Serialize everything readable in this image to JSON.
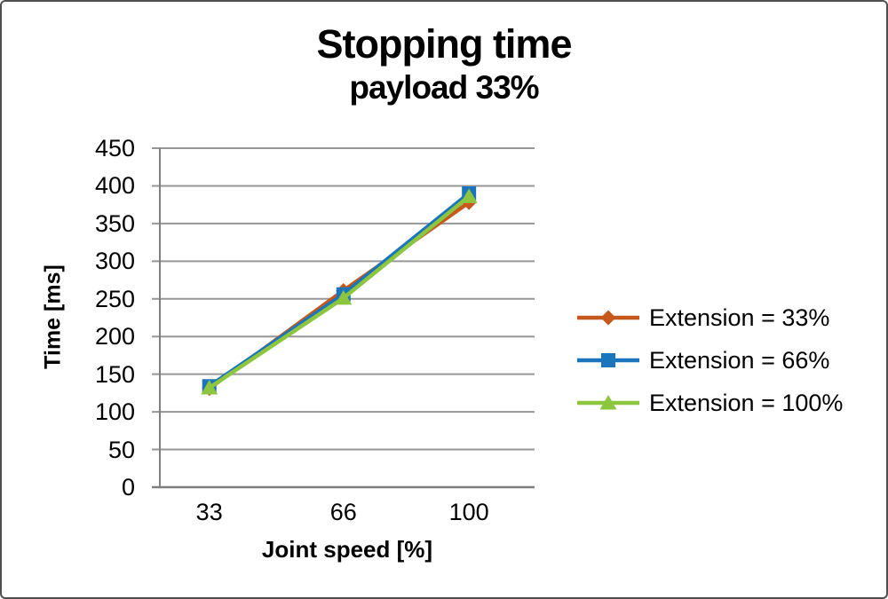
{
  "chart_data": {
    "type": "line",
    "title": "Stopping time",
    "subtitle": "payload 33%",
    "xlabel": "Joint speed [%]",
    "ylabel": "Time [ms]",
    "categories": [
      "33",
      "66",
      "100"
    ],
    "y_ticks": [
      0,
      50,
      100,
      150,
      200,
      250,
      300,
      350,
      400,
      450
    ],
    "ylim": [
      0,
      450
    ],
    "grid": true,
    "legend_position": "right",
    "series": [
      {
        "name": "Extension = 33%",
        "marker": "diamond",
        "color": "#C5581A",
        "values": [
          131,
          261,
          378
        ]
      },
      {
        "name": "Extension = 66%",
        "marker": "square",
        "color": "#1B75BC",
        "values": [
          134,
          256,
          390
        ]
      },
      {
        "name": "Extension = 100%",
        "marker": "triangle",
        "color": "#8CC63F",
        "values": [
          132,
          251,
          386
        ]
      }
    ],
    "colors": {
      "gridline": "#969696",
      "axis": "#7F7F7F",
      "text": "#000000"
    }
  }
}
